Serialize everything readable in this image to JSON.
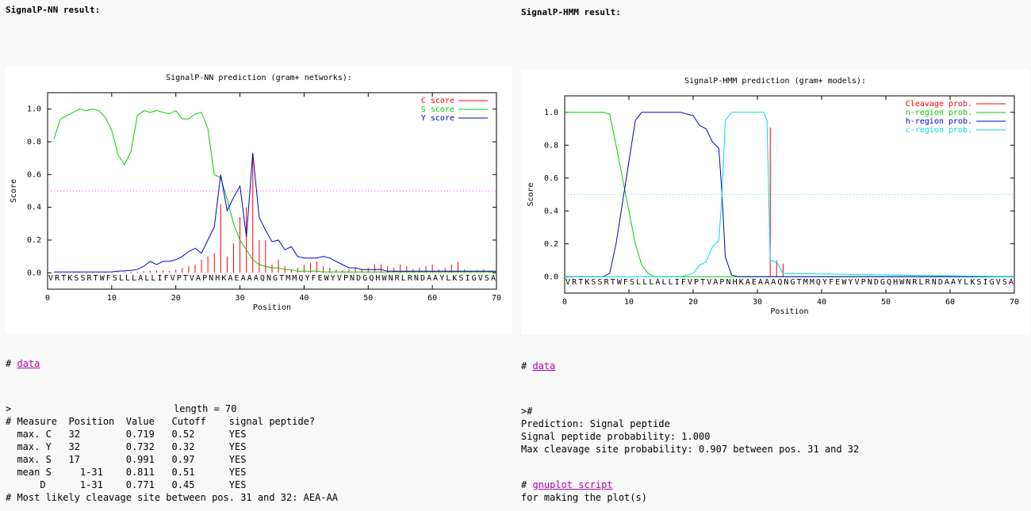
{
  "nn": {
    "heading": "SignalP-NN result:",
    "link_prefix": "#",
    "link_label": "data",
    "summary": {
      "head_line": ">",
      "length_text": "length = 70",
      "columns": [
        "# Measure",
        "Position",
        "Value",
        "Cutoff",
        "signal peptide?"
      ],
      "rows": [
        {
          "measure": "max. C",
          "position": "32",
          "value": "0.719",
          "cutoff": "0.52",
          "answer": "YES"
        },
        {
          "measure": "max. Y",
          "position": "32",
          "value": "0.732",
          "cutoff": "0.32",
          "answer": "YES"
        },
        {
          "measure": "max. S",
          "position": "17",
          "value": "0.991",
          "cutoff": "0.97",
          "answer": "YES"
        },
        {
          "measure": "mean S",
          "position": "1-31",
          "value": "0.811",
          "cutoff": "0.51",
          "answer": "YES"
        },
        {
          "measure": "D",
          "position": "1-31",
          "value": "0.771",
          "cutoff": "0.45",
          "answer": "YES"
        }
      ],
      "cleavage_line": "# Most likely cleavage site between pos. 31 and 32: AEA-AA"
    },
    "chart_data": {
      "type": "line",
      "title": "SignalP-NN prediction (gram+ networks):",
      "xlabel": "Position",
      "ylabel": "Score",
      "xlim": [
        0,
        70
      ],
      "ylim": [
        -0.1,
        1.1
      ],
      "xticks": [
        0,
        10,
        20,
        30,
        40,
        50,
        60,
        70
      ],
      "yticks": [
        0.0,
        0.2,
        0.4,
        0.6,
        0.8,
        1.0
      ],
      "xtick_labels": [
        "0",
        "10",
        "20",
        "30",
        "40",
        "50",
        "60",
        "70"
      ],
      "ytick_labels": [
        "0.0",
        "0.2",
        "0.4",
        "0.6",
        "0.8",
        "1.0"
      ],
      "threshold": 0.5,
      "sequence": "VRTKSSRTWFSLLLALLIFVPTVAPNHKAEAAAQNGTMMQYFEWYVPNDGQHWNRLRNDAAYLKSIGVSA",
      "legend_position": "top-right",
      "series": [
        {
          "name": "C score",
          "style": "impulses",
          "color": "#ff0000",
          "x": [
            1,
            2,
            3,
            4,
            5,
            6,
            7,
            8,
            9,
            10,
            11,
            12,
            13,
            14,
            15,
            16,
            17,
            18,
            19,
            20,
            21,
            22,
            23,
            24,
            25,
            26,
            27,
            28,
            29,
            30,
            31,
            32,
            33,
            34,
            35,
            36,
            37,
            38,
            39,
            40,
            41,
            42,
            43,
            44,
            45,
            46,
            47,
            48,
            49,
            50,
            51,
            52,
            53,
            54,
            55,
            56,
            57,
            58,
            59,
            60,
            61,
            62,
            63,
            64,
            65,
            66,
            67,
            68,
            69,
            70
          ],
          "y": [
            0.002,
            0.002,
            0.002,
            0.002,
            0.003,
            0.003,
            0.004,
            0.004,
            0.005,
            0.005,
            0.006,
            0.006,
            0.007,
            0.007,
            0.01,
            0.012,
            0.015,
            0.015,
            0.012,
            0.02,
            0.03,
            0.04,
            0.05,
            0.08,
            0.1,
            0.12,
            0.42,
            0.1,
            0.18,
            0.34,
            0.4,
            0.719,
            0.2,
            0.2,
            0.05,
            0.08,
            0.04,
            0.02,
            0.03,
            0.05,
            0.06,
            0.07,
            0.04,
            0.03,
            0.02,
            0.015,
            0.02,
            0.03,
            0.02,
            0.03,
            0.05,
            0.05,
            0.04,
            0.03,
            0.05,
            0.04,
            0.02,
            0.03,
            0.04,
            0.05,
            0.02,
            0.03,
            0.05,
            0.065,
            0.02,
            0.01,
            0.015,
            0.02,
            0.01,
            0.01
          ]
        },
        {
          "name": "S score",
          "style": "line",
          "color": "#00cc00",
          "x": [
            1,
            2,
            3,
            4,
            5,
            6,
            7,
            8,
            9,
            10,
            11,
            12,
            13,
            14,
            15,
            16,
            17,
            18,
            19,
            20,
            21,
            22,
            23,
            24,
            25,
            26,
            27,
            28,
            29,
            30,
            31,
            32,
            33,
            34,
            35,
            36,
            37,
            38,
            39,
            40,
            41,
            42,
            43,
            44,
            45,
            46,
            47,
            48,
            49,
            50,
            51,
            52,
            53,
            54,
            55,
            56,
            57,
            58,
            59,
            60,
            61,
            62,
            63,
            64,
            65,
            66,
            67,
            68,
            69,
            70
          ],
          "y": [
            0.82,
            0.94,
            0.96,
            0.98,
            1.0,
            0.99,
            1.0,
            0.99,
            0.95,
            0.87,
            0.72,
            0.66,
            0.74,
            0.96,
            0.99,
            0.98,
            0.991,
            0.98,
            0.97,
            0.99,
            0.94,
            0.94,
            0.97,
            0.98,
            0.88,
            0.6,
            0.58,
            0.45,
            0.3,
            0.2,
            0.14,
            0.08,
            0.05,
            0.04,
            0.03,
            0.03,
            0.02,
            0.02,
            0.01,
            0.01,
            0.01,
            0.01,
            0.005,
            0.005,
            0.005,
            0.005,
            0.005,
            0.005,
            0.005,
            0.005,
            0.005,
            0.005,
            0.005,
            0.005,
            0.005,
            0.005,
            0.005,
            0.005,
            0.005,
            0.005,
            0.005,
            0.005,
            0.005,
            0.005,
            0.005,
            0.005,
            0.005,
            0.005,
            0.005,
            0.005
          ]
        },
        {
          "name": "Y score",
          "style": "line",
          "color": "#0000cc",
          "x": [
            1,
            2,
            3,
            4,
            5,
            6,
            7,
            8,
            9,
            10,
            11,
            12,
            13,
            14,
            15,
            16,
            17,
            18,
            19,
            20,
            21,
            22,
            23,
            24,
            25,
            26,
            27,
            28,
            29,
            30,
            31,
            32,
            33,
            34,
            35,
            36,
            37,
            38,
            39,
            40,
            41,
            42,
            43,
            44,
            45,
            46,
            47,
            48,
            49,
            50,
            51,
            52,
            53,
            54,
            55,
            56,
            57,
            58,
            59,
            60,
            61,
            62,
            63,
            64,
            65,
            66,
            67,
            68,
            69,
            70
          ],
          "y": [
            0.005,
            0.005,
            0.005,
            0.005,
            0.005,
            0.005,
            0.005,
            0.005,
            0.005,
            0.006,
            0.01,
            0.012,
            0.015,
            0.02,
            0.04,
            0.07,
            0.05,
            0.07,
            0.07,
            0.08,
            0.1,
            0.13,
            0.15,
            0.12,
            0.2,
            0.28,
            0.6,
            0.38,
            0.46,
            0.53,
            0.22,
            0.732,
            0.34,
            0.26,
            0.19,
            0.2,
            0.14,
            0.16,
            0.1,
            0.09,
            0.09,
            0.09,
            0.1,
            0.09,
            0.07,
            0.05,
            0.03,
            0.03,
            0.02,
            0.02,
            0.02,
            0.02,
            0.01,
            0.01,
            0.01,
            0.01,
            0.01,
            0.01,
            0.01,
            0.01,
            0.01,
            0.01,
            0.01,
            0.01,
            0.01,
            0.01,
            0.01,
            0.01,
            0.01,
            0.01
          ]
        }
      ]
    }
  },
  "hmm": {
    "heading": "SignalP-HMM result:",
    "link_prefix": "#",
    "link_label": "data",
    "summary": {
      "head_line": ">#",
      "prediction": "Prediction: Signal peptide",
      "probability": "Signal peptide probability: 1.000",
      "max_cleavage": "Max cleavage site probability: 0.907 between pos. 31 and 32"
    },
    "script_prefix": "#",
    "script_label": "gnuplot script",
    "script_suffix": "for making the plot(s)",
    "chart_data": {
      "type": "line",
      "title": "SignalP-HMM prediction (gram+ models):",
      "xlabel": "Position",
      "ylabel": "Score",
      "xlim": [
        0,
        70
      ],
      "ylim": [
        -0.1,
        1.1
      ],
      "xticks": [
        0,
        10,
        20,
        30,
        40,
        50,
        60,
        70
      ],
      "yticks": [
        0.0,
        0.2,
        0.4,
        0.6,
        0.8,
        1.0
      ],
      "xtick_labels": [
        "0",
        "10",
        "20",
        "30",
        "40",
        "50",
        "60",
        "70"
      ],
      "ytick_labels": [
        "0.0",
        "0.2",
        "0.4",
        "0.6",
        "0.8",
        "1.0"
      ],
      "threshold": 0.5,
      "sequence": "VRTKSSRTWFSLLLALLIFVPTVAPNHKAEAAAQNGTMMQYFEWYVPNDGQHWNRLRNDAAYLKSIGVSA",
      "legend_position": "top-right",
      "series": [
        {
          "name": "Cleavage prob.",
          "style": "impulses",
          "color": "#ff0000",
          "x": [
            32,
            33,
            34
          ],
          "y": [
            0.907,
            0.1,
            0.08
          ]
        },
        {
          "name": "n-region prob.",
          "style": "line",
          "color": "#00cc00",
          "x": [
            0,
            1,
            2,
            3,
            4,
            5,
            6,
            7,
            8,
            9,
            10,
            11,
            12,
            13,
            14,
            70
          ],
          "y": [
            1.0,
            1.0,
            1.0,
            1.0,
            1.0,
            1.0,
            1.0,
            0.99,
            0.8,
            0.6,
            0.4,
            0.2,
            0.07,
            0.02,
            0.0,
            0.0
          ]
        },
        {
          "name": "h-region prob.",
          "style": "line",
          "color": "#0000cc",
          "x": [
            0,
            6,
            7,
            8,
            9,
            10,
            11,
            12,
            13,
            18,
            20,
            21,
            22,
            23,
            24,
            24.5,
            25,
            26,
            27,
            70
          ],
          "y": [
            0.0,
            0.0,
            0.02,
            0.2,
            0.45,
            0.7,
            0.95,
            1.0,
            1.0,
            1.0,
            0.98,
            0.92,
            0.9,
            0.82,
            0.78,
            0.5,
            0.12,
            0.01,
            0.0,
            0.0
          ]
        },
        {
          "name": "c-region prob.",
          "style": "line",
          "color": "#00dddd",
          "x": [
            0,
            18,
            19,
            20,
            21,
            22,
            23,
            24,
            24.5,
            25,
            26,
            31,
            31.5,
            32,
            33,
            34,
            70
          ],
          "y": [
            0.0,
            0.0,
            0.01,
            0.02,
            0.07,
            0.09,
            0.18,
            0.22,
            0.5,
            0.95,
            1.0,
            1.0,
            0.95,
            0.1,
            0.09,
            0.02,
            0.0
          ]
        }
      ]
    }
  }
}
